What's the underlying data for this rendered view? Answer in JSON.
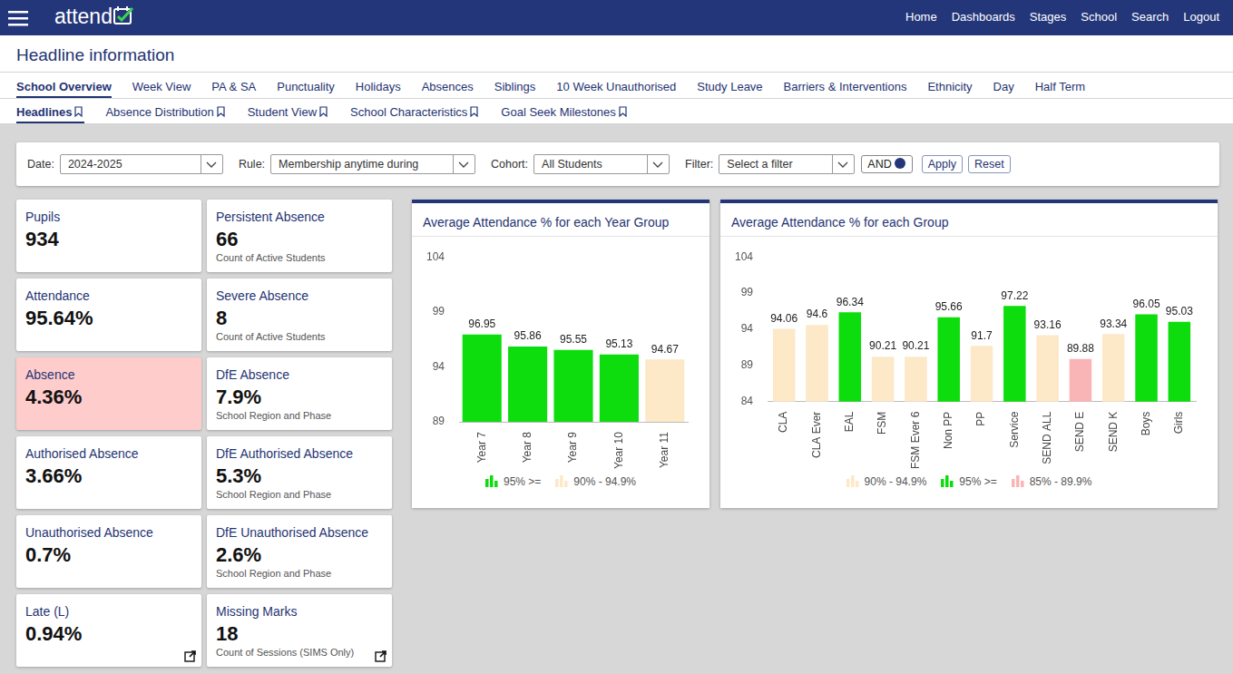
{
  "header": {
    "brand": "attend",
    "nav": [
      "Home",
      "Dashboards",
      "Stages",
      "School",
      "Search",
      "Logout"
    ]
  },
  "page_title": "Headline information",
  "tabs": [
    {
      "label": "School Overview",
      "active": true
    },
    {
      "label": "Week View",
      "active": false
    },
    {
      "label": "PA & SA",
      "active": false
    },
    {
      "label": "Punctuality",
      "active": false
    },
    {
      "label": "Holidays",
      "active": false
    },
    {
      "label": "Absences",
      "active": false
    },
    {
      "label": "Siblings",
      "active": false
    },
    {
      "label": "10 Week Unauthorised",
      "active": false
    },
    {
      "label": "Study Leave",
      "active": false
    },
    {
      "label": "Barriers & Interventions",
      "active": false
    },
    {
      "label": "Ethnicity",
      "active": false
    },
    {
      "label": "Day",
      "active": false
    },
    {
      "label": "Half Term",
      "active": false
    }
  ],
  "subtabs": [
    {
      "label": "Headlines",
      "active": true
    },
    {
      "label": "Absence Distribution",
      "active": false
    },
    {
      "label": "Student View",
      "active": false
    },
    {
      "label": "School Characteristics",
      "active": false
    },
    {
      "label": "Goal Seek Milestones",
      "active": false
    }
  ],
  "filters": {
    "fields": [
      {
        "label": "Date:",
        "value": "2024-2025"
      },
      {
        "label": "Rule:",
        "value": "Membership anytime during"
      },
      {
        "label": "Cohort:",
        "value": "All Students"
      },
      {
        "label": "Filter:",
        "value": "Select a filter"
      }
    ],
    "operator": "AND",
    "buttons": [
      "Apply",
      "Reset"
    ]
  },
  "tiles": [
    {
      "title": "Pupils",
      "value": "934"
    },
    {
      "title": "Persistent Absence",
      "value": "66",
      "note": "Count of Active Students"
    },
    {
      "title": "Attendance",
      "value": "95.64%"
    },
    {
      "title": "Severe Absence",
      "value": "8",
      "note": "Count of Active Students"
    },
    {
      "title": "Absence",
      "value": "4.36%",
      "color": "#ffcccc"
    },
    {
      "title": "DfE Absence",
      "value": "7.9%",
      "note": "School Region and Phase"
    },
    {
      "title": "Authorised Absence",
      "value": "3.66%"
    },
    {
      "title": "DfE Authorised Absence",
      "value": "5.3%",
      "note": "School Region and Phase"
    },
    {
      "title": "Unauthorised Absence",
      "value": "0.7%"
    },
    {
      "title": "DfE Unauthorised Absence",
      "value": "2.6%",
      "note": "School Region and Phase"
    },
    {
      "title": "Late (L)",
      "value": "0.94%",
      "link": true
    },
    {
      "title": "Missing Marks",
      "value": "18",
      "note": "Count of Sessions (SIMS Only)",
      "link": true
    }
  ],
  "chart_data": [
    {
      "type": "bar",
      "title": "Average Attendance % for each Year Group",
      "categories": [
        "Year 7",
        "Year 8",
        "Year 9",
        "Year 10",
        "Year 11"
      ],
      "series": [
        {
          "name": "95% >=",
          "color": "#0ddc0d",
          "values": [
            96.95,
            95.86,
            95.55,
            95.13,
            null
          ]
        },
        {
          "name": "90% - 94.9%",
          "color": "#fde8c8",
          "values": [
            null,
            null,
            null,
            null,
            94.67
          ]
        }
      ],
      "stacked": true,
      "ylim": [
        89,
        104
      ],
      "yticks": [
        89,
        94,
        99,
        104
      ],
      "grid": false,
      "data_labels": true,
      "legend": "bottom"
    },
    {
      "type": "bar",
      "title": "Average Attendance % for each Group",
      "categories": [
        "CLA",
        "CLA Ever",
        "EAL",
        "FSM",
        "FSM Ever 6",
        "Non PP",
        "PP",
        "Service",
        "SEND ALL",
        "SEND E",
        "SEND K",
        "Boys",
        "Girls"
      ],
      "series": [
        {
          "name": "90% - 94.9%",
          "color": "#fde8c8",
          "values": [
            94.06,
            94.6,
            null,
            90.21,
            90.21,
            null,
            91.7,
            null,
            93.16,
            null,
            93.34,
            null,
            null
          ]
        },
        {
          "name": "95% >=",
          "color": "#0ddc0d",
          "values": [
            null,
            null,
            96.34,
            null,
            null,
            95.66,
            null,
            97.22,
            null,
            null,
            null,
            96.05,
            95.03
          ]
        },
        {
          "name": "85% - 89.9%",
          "color": "#f9b4b6",
          "values": [
            null,
            null,
            null,
            null,
            null,
            null,
            null,
            null,
            null,
            89.88,
            null,
            null,
            null
          ]
        }
      ],
      "stacked": true,
      "ylim": [
        84,
        104
      ],
      "yticks": [
        84,
        89,
        94,
        99,
        104
      ],
      "grid": false,
      "data_labels": true,
      "legend": "bottom"
    }
  ]
}
